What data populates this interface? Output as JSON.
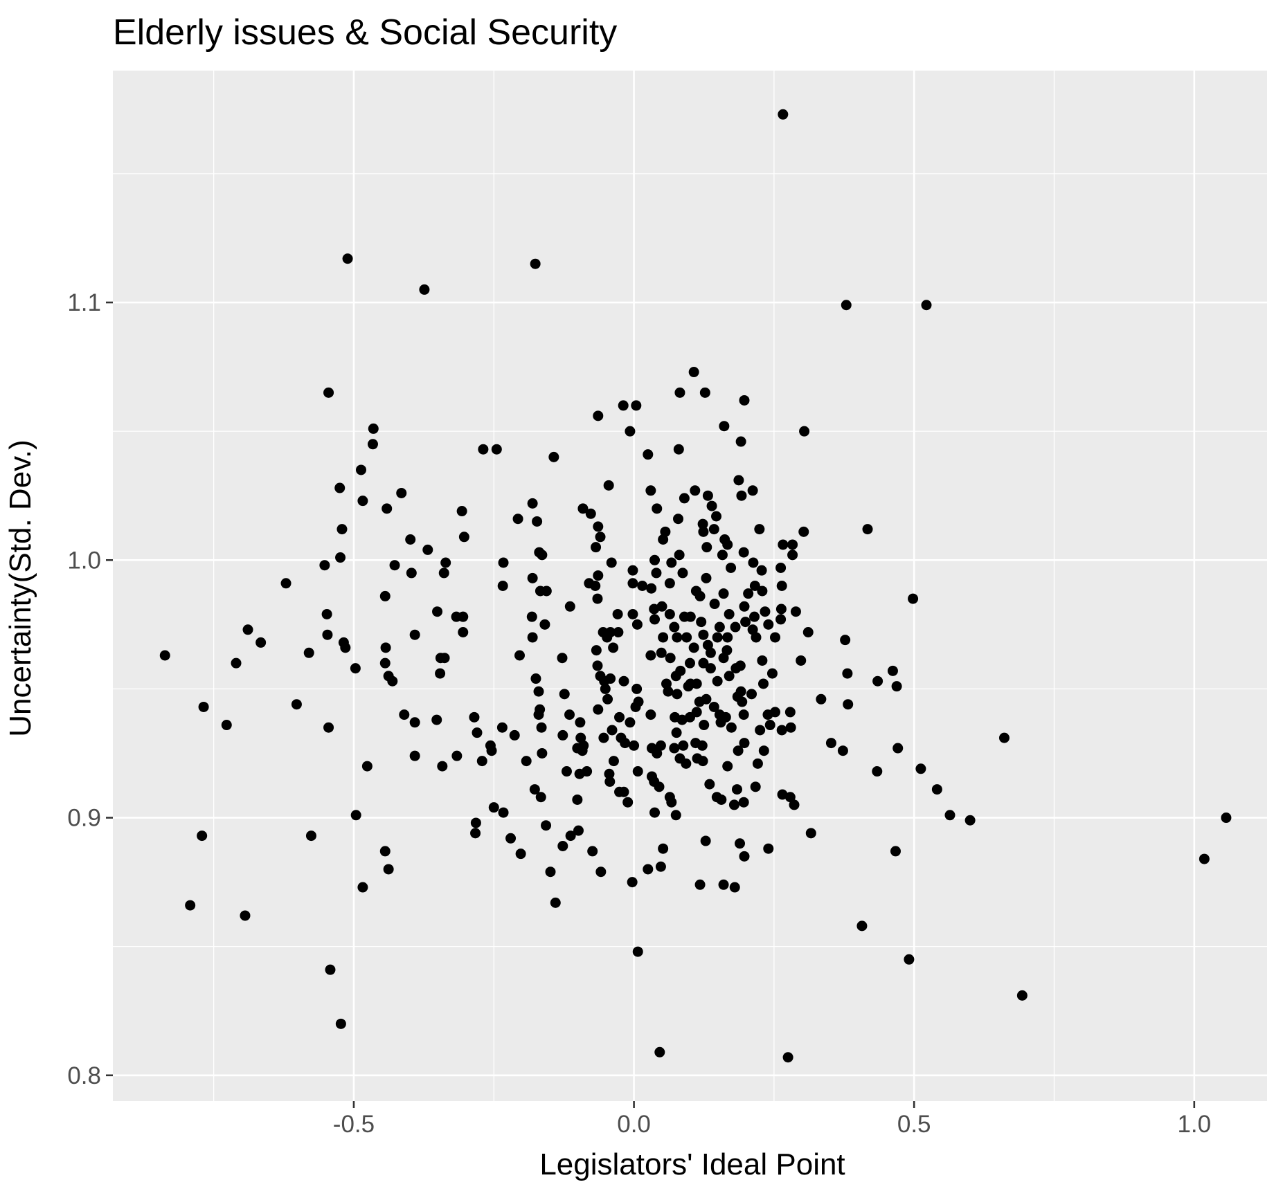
{
  "chart_data": {
    "type": "scatter",
    "title": "Elderly issues & Social Security",
    "xlabel": "Legislators' Ideal Point",
    "ylabel": "Uncertainty(Std. Dev.)",
    "xlim": [
      -0.93,
      1.13
    ],
    "ylim": [
      0.79,
      1.19
    ],
    "x_ticks": [
      -0.5,
      0.0,
      0.5,
      1.0
    ],
    "x_tick_labels": [
      "-0.5",
      "0.0",
      "0.5",
      "1.0"
    ],
    "y_ticks": [
      0.8,
      0.9,
      1.0,
      1.1
    ],
    "y_tick_labels": [
      "0.8",
      "0.9",
      "1.0",
      "1.1"
    ],
    "grid": true,
    "legend": "none",
    "colors": {
      "panel": "#ebebeb",
      "grid": "#ffffff",
      "point": "#000000",
      "tick": "#333333"
    },
    "points": [
      [
        0.266,
        1.173
      ],
      [
        -0.511,
        1.117
      ],
      [
        -0.176,
        1.115
      ],
      [
        -0.374,
        1.105
      ],
      [
        0.379,
        1.099
      ],
      [
        0.522,
        1.099
      ],
      [
        0.107,
        1.073
      ],
      [
        -0.545,
        1.065
      ],
      [
        0.082,
        1.065
      ],
      [
        0.127,
        1.065
      ],
      [
        0.197,
        1.062
      ],
      [
        -0.019,
        1.06
      ],
      [
        0.004,
        1.06
      ],
      [
        -0.064,
        1.056
      ],
      [
        0.161,
        1.052
      ],
      [
        -0.465,
        1.051
      ],
      [
        0.304,
        1.05
      ],
      [
        -0.007,
        1.05
      ],
      [
        0.191,
        1.046
      ],
      [
        -0.466,
        1.045
      ],
      [
        -0.269,
        1.043
      ],
      [
        -0.245,
        1.043
      ],
      [
        0.08,
        1.043
      ],
      [
        0.025,
        1.041
      ],
      [
        -0.143,
        1.04
      ],
      [
        -0.487,
        1.035
      ],
      [
        0.187,
        1.031
      ],
      [
        -0.045,
        1.029
      ],
      [
        -0.525,
        1.028
      ],
      [
        0.03,
        1.027
      ],
      [
        0.109,
        1.027
      ],
      [
        0.212,
        1.027
      ],
      [
        -0.415,
        1.026
      ],
      [
        0.132,
        1.025
      ],
      [
        0.192,
        1.025
      ],
      [
        0.09,
        1.024
      ],
      [
        -0.484,
        1.023
      ],
      [
        -0.181,
        1.022
      ],
      [
        0.139,
        1.021
      ],
      [
        -0.441,
        1.02
      ],
      [
        -0.091,
        1.02
      ],
      [
        0.041,
        1.02
      ],
      [
        -0.307,
        1.019
      ],
      [
        -0.077,
        1.018
      ],
      [
        0.147,
        1.017
      ],
      [
        0.079,
        1.016
      ],
      [
        -0.207,
        1.016
      ],
      [
        -0.173,
        1.015
      ],
      [
        0.123,
        1.014
      ],
      [
        -0.064,
        1.013
      ],
      [
        0.143,
        1.012
      ],
      [
        0.224,
        1.012
      ],
      [
        0.124,
        1.011
      ],
      [
        0.303,
        1.011
      ],
      [
        -0.521,
        1.012
      ],
      [
        0.417,
        1.012
      ],
      [
        0.056,
        1.011
      ],
      [
        -0.399,
        1.008
      ],
      [
        -0.303,
        1.009
      ],
      [
        -0.06,
        1.009
      ],
      [
        0.052,
        1.008
      ],
      [
        0.162,
        1.008
      ],
      [
        0.266,
        1.006
      ],
      [
        0.283,
        1.006
      ],
      [
        0.167,
        1.006
      ],
      [
        0.13,
        1.005
      ],
      [
        -0.068,
        1.005
      ],
      [
        -0.368,
        1.004
      ],
      [
        -0.169,
        1.003
      ],
      [
        0.196,
        1.003
      ],
      [
        -0.164,
        1.002
      ],
      [
        0.081,
        1.002
      ],
      [
        0.283,
        1.002
      ],
      [
        0.158,
        1.002
      ],
      [
        0.037,
        1.0
      ],
      [
        -0.524,
        1.001
      ],
      [
        0.067,
        0.999
      ],
      [
        -0.233,
        0.999
      ],
      [
        -0.04,
        0.999
      ],
      [
        0.213,
        0.999
      ],
      [
        -0.552,
        0.998
      ],
      [
        -0.427,
        0.998
      ],
      [
        -0.336,
        0.999
      ],
      [
        0.173,
        0.997
      ],
      [
        0.262,
        0.997
      ],
      [
        0.228,
        0.996
      ],
      [
        -0.002,
        0.996
      ],
      [
        0.04,
        0.995
      ],
      [
        0.087,
        0.995
      ],
      [
        -0.339,
        0.995
      ],
      [
        -0.397,
        0.995
      ],
      [
        -0.064,
        0.994
      ],
      [
        -0.181,
        0.993
      ],
      [
        0.129,
        0.993
      ],
      [
        -0.08,
        0.991
      ],
      [
        -0.621,
        0.991
      ],
      [
        -0.002,
        0.991
      ],
      [
        0.064,
        0.991
      ],
      [
        -0.069,
        0.99
      ],
      [
        -0.234,
        0.99
      ],
      [
        0.216,
        0.99
      ],
      [
        0.264,
        0.99
      ],
      [
        0.015,
        0.99
      ],
      [
        0.031,
        0.989
      ],
      [
        0.229,
        0.988
      ],
      [
        0.111,
        0.988
      ],
      [
        0.16,
        0.987
      ],
      [
        -0.156,
        0.988
      ],
      [
        -0.167,
        0.988
      ],
      [
        0.204,
        0.987
      ],
      [
        0.118,
        0.986
      ],
      [
        -0.444,
        0.986
      ],
      [
        -0.065,
        0.985
      ],
      [
        0.498,
        0.985
      ],
      [
        0.144,
        0.983
      ],
      [
        -0.114,
        0.982
      ],
      [
        0.197,
        0.982
      ],
      [
        0.036,
        0.981
      ],
      [
        0.05,
        0.982
      ],
      [
        0.263,
        0.981
      ],
      [
        0.234,
        0.98
      ],
      [
        -0.351,
        0.98
      ],
      [
        0.289,
        0.98
      ],
      [
        -0.029,
        0.979
      ],
      [
        -0.002,
        0.979
      ],
      [
        -0.548,
        0.979
      ],
      [
        0.064,
        0.979
      ],
      [
        0.09,
        0.978
      ],
      [
        0.101,
        0.978
      ],
      [
        0.17,
        0.979
      ],
      [
        0.215,
        0.978
      ],
      [
        -0.317,
        0.978
      ],
      [
        -0.305,
        0.978
      ],
      [
        -0.182,
        0.978
      ],
      [
        0.262,
        0.977
      ],
      [
        0.199,
        0.976
      ],
      [
        0.24,
        0.975
      ],
      [
        0.037,
        0.977
      ],
      [
        0.12,
        0.976
      ],
      [
        -0.159,
        0.975
      ],
      [
        0.006,
        0.975
      ],
      [
        0.072,
        0.974
      ],
      [
        0.153,
        0.974
      ],
      [
        0.181,
        0.974
      ],
      [
        0.212,
        0.973
      ],
      [
        0.124,
        0.971
      ],
      [
        -0.689,
        0.973
      ],
      [
        -0.055,
        0.972
      ],
      [
        -0.042,
        0.972
      ],
      [
        -0.028,
        0.972
      ],
      [
        -0.305,
        0.972
      ],
      [
        0.311,
        0.972
      ],
      [
        0.052,
        0.97
      ],
      [
        0.094,
        0.97
      ],
      [
        0.218,
        0.97
      ],
      [
        0.252,
        0.97
      ],
      [
        -0.181,
        0.97
      ],
      [
        -0.048,
        0.97
      ],
      [
        -0.547,
        0.971
      ],
      [
        -0.391,
        0.971
      ],
      [
        0.149,
        0.97
      ],
      [
        0.167,
        0.97
      ],
      [
        0.077,
        0.97
      ],
      [
        0.377,
        0.969
      ],
      [
        -0.666,
        0.968
      ],
      [
        -0.518,
        0.968
      ],
      [
        0.132,
        0.967
      ],
      [
        0.107,
        0.966
      ],
      [
        -0.443,
        0.966
      ],
      [
        -0.037,
        0.966
      ],
      [
        -0.067,
        0.965
      ],
      [
        0.166,
        0.965
      ],
      [
        -0.515,
        0.966
      ],
      [
        0.049,
        0.964
      ],
      [
        0.137,
        0.964
      ],
      [
        -0.58,
        0.964
      ],
      [
        -0.837,
        0.963
      ],
      [
        0.03,
        0.963
      ],
      [
        -0.204,
        0.963
      ],
      [
        0.16,
        0.962
      ],
      [
        -0.345,
        0.962
      ],
      [
        -0.338,
        0.962
      ],
      [
        -0.128,
        0.962
      ],
      [
        0.065,
        0.962
      ],
      [
        0.229,
        0.961
      ],
      [
        0.298,
        0.961
      ],
      [
        -0.444,
        0.96
      ],
      [
        -0.71,
        0.96
      ],
      [
        0.1,
        0.96
      ],
      [
        0.124,
        0.96
      ],
      [
        0.19,
        0.959
      ],
      [
        0.182,
        0.958
      ],
      [
        -0.497,
        0.958
      ],
      [
        -0.065,
        0.959
      ],
      [
        0.137,
        0.958
      ],
      [
        0.083,
        0.957
      ],
      [
        0.462,
        0.957
      ],
      [
        0.247,
        0.956
      ],
      [
        0.381,
        0.956
      ],
      [
        -0.346,
        0.956
      ],
      [
        -0.438,
        0.955
      ],
      [
        -0.06,
        0.955
      ],
      [
        0.075,
        0.955
      ],
      [
        0.17,
        0.955
      ],
      [
        0.149,
        0.953
      ],
      [
        -0.175,
        0.954
      ],
      [
        0.435,
        0.953
      ],
      [
        -0.018,
        0.953
      ],
      [
        -0.042,
        0.954
      ],
      [
        -0.053,
        0.953
      ],
      [
        -0.431,
        0.953
      ],
      [
        0.058,
        0.952
      ],
      [
        0.101,
        0.952
      ],
      [
        0.112,
        0.952
      ],
      [
        0.231,
        0.952
      ],
      [
        0.097,
        0.951
      ],
      [
        0.469,
        0.951
      ],
      [
        0.005,
        0.95
      ],
      [
        -0.051,
        0.95
      ],
      [
        0.061,
        0.949
      ],
      [
        0.191,
        0.949
      ],
      [
        -0.17,
        0.949
      ],
      [
        -0.124,
        0.948
      ],
      [
        0.077,
        0.948
      ],
      [
        0.21,
        0.948
      ],
      [
        0.185,
        0.947
      ],
      [
        -0.047,
        0.946
      ],
      [
        0.334,
        0.946
      ],
      [
        0.129,
        0.946
      ],
      [
        0.117,
        0.945
      ],
      [
        0.193,
        0.945
      ],
      [
        0.008,
        0.945
      ],
      [
        -0.602,
        0.944
      ],
      [
        0.382,
        0.944
      ],
      [
        0.143,
        0.943
      ],
      [
        0.003,
        0.943
      ],
      [
        -0.768,
        0.943
      ],
      [
        -0.168,
        0.942
      ],
      [
        -0.064,
        0.942
      ],
      [
        0.03,
        0.94
      ],
      [
        0.112,
        0.941
      ],
      [
        -0.41,
        0.94
      ],
      [
        0.252,
        0.941
      ],
      [
        0.279,
        0.941
      ],
      [
        -0.17,
        0.94
      ],
      [
        0.073,
        0.939
      ],
      [
        0.1,
        0.939
      ],
      [
        0.153,
        0.94
      ],
      [
        0.164,
        0.939
      ],
      [
        0.239,
        0.94
      ],
      [
        -0.115,
        0.94
      ],
      [
        -0.285,
        0.939
      ],
      [
        0.086,
        0.938
      ],
      [
        0.196,
        0.94
      ],
      [
        -0.026,
        0.939
      ],
      [
        -0.352,
        0.938
      ],
      [
        -0.391,
        0.937
      ],
      [
        0.155,
        0.937
      ],
      [
        -0.007,
        0.937
      ],
      [
        -0.096,
        0.937
      ],
      [
        0.243,
        0.936
      ],
      [
        0.125,
        0.936
      ],
      [
        -0.727,
        0.936
      ],
      [
        0.28,
        0.935
      ],
      [
        -0.165,
        0.935
      ],
      [
        0.174,
        0.935
      ],
      [
        -0.235,
        0.935
      ],
      [
        -0.039,
        0.934
      ],
      [
        0.225,
        0.934
      ],
      [
        -0.545,
        0.935
      ],
      [
        0.264,
        0.934
      ],
      [
        -0.28,
        0.933
      ],
      [
        -0.213,
        0.932
      ],
      [
        -0.127,
        0.932
      ],
      [
        0.076,
        0.933
      ],
      [
        -0.095,
        0.931
      ],
      [
        -0.054,
        0.931
      ],
      [
        0.661,
        0.931
      ],
      [
        -0.023,
        0.931
      ],
      [
        -0.016,
        0.929
      ],
      [
        0.352,
        0.929
      ],
      [
        0.11,
        0.929
      ],
      [
        0.122,
        0.928
      ],
      [
        0.197,
        0.929
      ],
      [
        -0.256,
        0.928
      ],
      [
        0.088,
        0.928
      ],
      [
        -0.09,
        0.928
      ],
      [
        0.032,
        0.927
      ],
      [
        0.048,
        0.928
      ],
      [
        0.072,
        0.927
      ],
      [
        0.186,
        0.926
      ],
      [
        0.373,
        0.926
      ],
      [
        -0.0,
        0.928
      ],
      [
        -0.101,
        0.927
      ],
      [
        0.232,
        0.926
      ],
      [
        -0.254,
        0.926
      ],
      [
        0.471,
        0.927
      ],
      [
        -0.092,
        0.926
      ],
      [
        -0.164,
        0.925
      ],
      [
        0.041,
        0.925
      ],
      [
        0.082,
        0.923
      ],
      [
        -0.391,
        0.924
      ],
      [
        -0.316,
        0.924
      ],
      [
        0.113,
        0.923
      ],
      [
        -0.271,
        0.922
      ],
      [
        0.123,
        0.922
      ],
      [
        0.093,
        0.921
      ],
      [
        -0.192,
        0.922
      ],
      [
        -0.036,
        0.922
      ],
      [
        0.221,
        0.921
      ],
      [
        0.167,
        0.92
      ],
      [
        -0.476,
        0.92
      ],
      [
        -0.342,
        0.92
      ],
      [
        0.512,
        0.919
      ],
      [
        -0.12,
        0.918
      ],
      [
        0.434,
        0.918
      ],
      [
        0.007,
        0.918
      ],
      [
        -0.084,
        0.918
      ],
      [
        -0.044,
        0.917
      ],
      [
        0.032,
        0.916
      ],
      [
        -0.097,
        0.917
      ],
      [
        0.036,
        0.914
      ],
      [
        -0.043,
        0.914
      ],
      [
        0.135,
        0.913
      ],
      [
        0.217,
        0.912
      ],
      [
        0.541,
        0.911
      ],
      [
        0.045,
        0.912
      ],
      [
        -0.177,
        0.911
      ],
      [
        0.184,
        0.911
      ],
      [
        -0.026,
        0.91
      ],
      [
        -0.018,
        0.91
      ],
      [
        0.265,
        0.909
      ],
      [
        0.279,
        0.908
      ],
      [
        -0.166,
        0.908
      ],
      [
        0.148,
        0.908
      ],
      [
        0.064,
        0.908
      ],
      [
        0.156,
        0.907
      ],
      [
        -0.101,
        0.907
      ],
      [
        -0.011,
        0.906
      ],
      [
        0.067,
        0.906
      ],
      [
        0.196,
        0.906
      ],
      [
        0.179,
        0.905
      ],
      [
        0.286,
        0.905
      ],
      [
        -0.25,
        0.904
      ],
      [
        -0.233,
        0.902
      ],
      [
        0.037,
        0.902
      ],
      [
        0.075,
        0.901
      ],
      [
        -0.496,
        0.901
      ],
      [
        0.564,
        0.901
      ],
      [
        1.057,
        0.9
      ],
      [
        0.6,
        0.899
      ],
      [
        -0.282,
        0.898
      ],
      [
        -0.157,
        0.897
      ],
      [
        -0.099,
        0.895
      ],
      [
        -0.113,
        0.893
      ],
      [
        -0.283,
        0.894
      ],
      [
        0.316,
        0.894
      ],
      [
        -0.576,
        0.893
      ],
      [
        -0.771,
        0.893
      ],
      [
        -0.22,
        0.892
      ],
      [
        0.128,
        0.891
      ],
      [
        0.189,
        0.89
      ],
      [
        -0.127,
        0.889
      ],
      [
        0.052,
        0.888
      ],
      [
        0.24,
        0.888
      ],
      [
        0.467,
        0.887
      ],
      [
        -0.444,
        0.887
      ],
      [
        -0.074,
        0.887
      ],
      [
        -0.202,
        0.886
      ],
      [
        0.197,
        0.885
      ],
      [
        1.018,
        0.884
      ],
      [
        0.025,
        0.88
      ],
      [
        0.048,
        0.881
      ],
      [
        -0.438,
        0.88
      ],
      [
        -0.059,
        0.879
      ],
      [
        -0.149,
        0.879
      ],
      [
        -0.003,
        0.875
      ],
      [
        0.118,
        0.874
      ],
      [
        0.16,
        0.874
      ],
      [
        0.18,
        0.873
      ],
      [
        -0.484,
        0.873
      ],
      [
        -0.792,
        0.866
      ],
      [
        -0.14,
        0.867
      ],
      [
        -0.694,
        0.862
      ],
      [
        0.407,
        0.858
      ],
      [
        0.007,
        0.848
      ],
      [
        0.491,
        0.845
      ],
      [
        -0.542,
        0.841
      ],
      [
        0.693,
        0.831
      ],
      [
        -0.523,
        0.82
      ],
      [
        0.046,
        0.809
      ],
      [
        0.275,
        0.807
      ]
    ]
  }
}
